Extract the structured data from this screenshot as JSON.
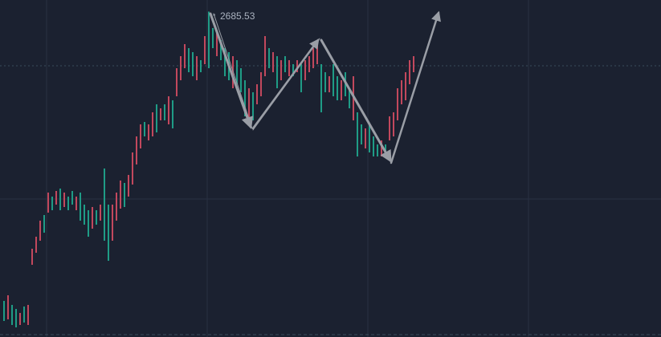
{
  "chart_data": {
    "type": "range-bar",
    "annotation": "2685.53",
    "ylim": [
      2280,
      2700
    ],
    "up_color": "#c2485d",
    "down_color": "#1f9c86",
    "high": [
      2325,
      2332,
      2320,
      2315,
      2310,
      2318,
      2320,
      2390,
      2405,
      2425,
      2432,
      2460,
      2455,
      2462,
      2465,
      2460,
      2455,
      2462,
      2455,
      2460,
      2445,
      2438,
      2442,
      2438,
      2445,
      2490,
      2445,
      2445,
      2460,
      2475,
      2472,
      2482,
      2510,
      2530,
      2545,
      2548,
      2545,
      2560,
      2570,
      2565,
      2570,
      2580,
      2575,
      2615,
      2630,
      2645,
      2640,
      2635,
      2630,
      2625,
      2655,
      2685.53,
      2665,
      2660,
      2650,
      2640,
      2635,
      2630,
      2625,
      2615,
      2600,
      2590,
      2585,
      2595,
      2610,
      2655,
      2640,
      2635,
      2630,
      2625,
      2630,
      2625,
      2620,
      2625,
      2620,
      2625,
      2630,
      2640,
      2650,
      2620,
      2610,
      2605,
      2620,
      2605,
      2600,
      2610,
      2590,
      2605,
      2560,
      2545,
      2540,
      2545,
      2530,
      2520,
      2525,
      2520,
      2555,
      2560,
      2590,
      2600,
      2610,
      2625,
      2630
    ],
    "low": [
      2300,
      2302,
      2295,
      2292,
      2295,
      2298,
      2295,
      2370,
      2385,
      2400,
      2410,
      2435,
      2438,
      2445,
      2438,
      2442,
      2438,
      2445,
      2438,
      2425,
      2420,
      2405,
      2415,
      2420,
      2425,
      2400,
      2375,
      2400,
      2425,
      2440,
      2442,
      2455,
      2470,
      2495,
      2515,
      2530,
      2525,
      2530,
      2535,
      2550,
      2550,
      2545,
      2540,
      2580,
      2600,
      2615,
      2610,
      2605,
      2600,
      2610,
      2620,
      2615,
      2640,
      2630,
      2625,
      2605,
      2600,
      2590,
      2595,
      2585,
      2555,
      2545,
      2550,
      2570,
      2580,
      2605,
      2615,
      2610,
      2590,
      2600,
      2610,
      2605,
      2605,
      2610,
      2585,
      2600,
      2610,
      2615,
      2620,
      2560,
      2585,
      2585,
      2580,
      2575,
      2575,
      2580,
      2565,
      2550,
      2505,
      2520,
      2515,
      2510,
      2505,
      2505,
      2505,
      2505,
      2525,
      2530,
      2550,
      2570,
      2575,
      2595,
      2610
    ],
    "rising": [
      false,
      true,
      false,
      false,
      true,
      false,
      true,
      true,
      true,
      true,
      false,
      true,
      false,
      true,
      false,
      true,
      false,
      false,
      true,
      false,
      false,
      false,
      true,
      false,
      true,
      false,
      false,
      true,
      true,
      true,
      false,
      true,
      true,
      true,
      true,
      false,
      true,
      true,
      false,
      true,
      false,
      true,
      false,
      true,
      true,
      true,
      false,
      false,
      true,
      false,
      true,
      false,
      false,
      true,
      false,
      false,
      false,
      true,
      false,
      false,
      false,
      true,
      false,
      true,
      true,
      true,
      false,
      true,
      false,
      true,
      false,
      true,
      false,
      true,
      false,
      true,
      true,
      true,
      true,
      false,
      false,
      true,
      false,
      false,
      true,
      false,
      false,
      true,
      false,
      false,
      true,
      false,
      false,
      false,
      true,
      false,
      true,
      true,
      true,
      true,
      true,
      true,
      true
    ]
  }
}
